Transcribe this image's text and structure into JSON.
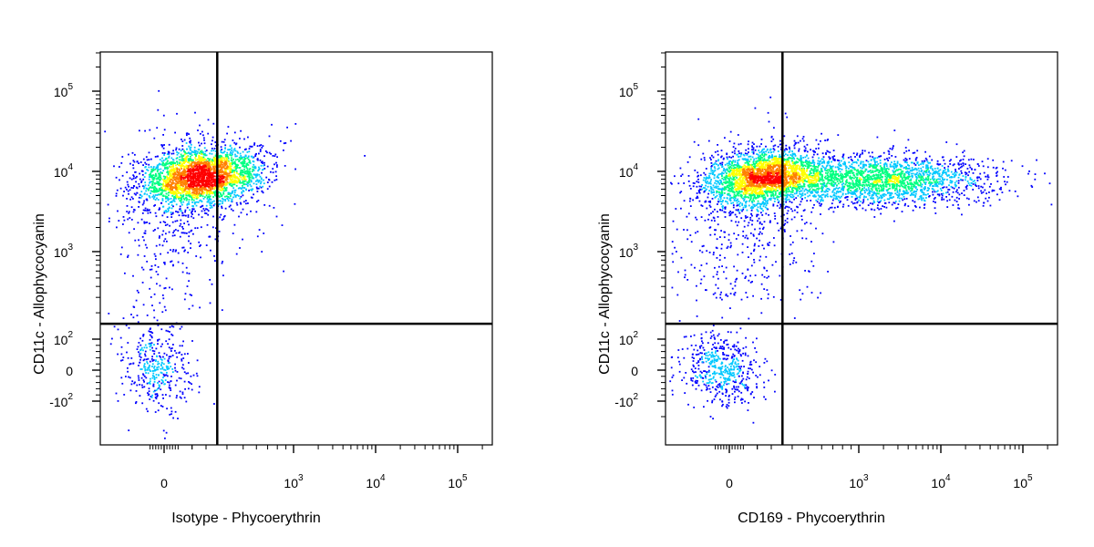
{
  "chart_data": [
    {
      "type": "scatter",
      "subtype": "flow-cytometry-density-dot-plot",
      "title": "",
      "xlabel": "Isotype - Phycoerythrin",
      "ylabel": "CD11c - Allophycocyanin",
      "x_scale": "biexponential",
      "y_scale": "biexponential",
      "xlim": [
        -150,
        200000
      ],
      "ylim": [
        -200,
        250000
      ],
      "x_ticks": [
        {
          "value": 0,
          "base": "0",
          "exp": ""
        },
        {
          "value": 1000,
          "base": "10",
          "exp": "3"
        },
        {
          "value": 10000,
          "base": "10",
          "exp": "4"
        },
        {
          "value": 100000,
          "base": "10",
          "exp": "5"
        }
      ],
      "y_ticks": [
        {
          "value": -100,
          "base": "-10",
          "exp": "2"
        },
        {
          "value": 0,
          "base": "0",
          "exp": ""
        },
        {
          "value": 100,
          "base": "10",
          "exp": "2"
        },
        {
          "value": 1000,
          "base": "10",
          "exp": "3"
        },
        {
          "value": 10000,
          "base": "10",
          "exp": "4"
        },
        {
          "value": 100000,
          "base": "10",
          "exp": "5"
        }
      ],
      "quadrant_gate": {
        "x": 350,
        "y": 150
      },
      "density_colors": [
        "#0000ff",
        "#00c8ff",
        "#00ff80",
        "#ffff00",
        "#ff8000",
        "#ff0000"
      ],
      "populations": [
        {
          "x_center": 60,
          "x_spread": 70,
          "y_center": 8500,
          "y_spread": 0.17,
          "shape": "cluster-high"
        },
        {
          "x_center": 20,
          "x_spread": 25,
          "y_center": 10,
          "y_spread": 35,
          "shape": "cluster-low"
        }
      ],
      "grid": false,
      "legend": "none"
    },
    {
      "type": "scatter",
      "subtype": "flow-cytometry-density-dot-plot",
      "title": "",
      "xlabel": "CD169 - Phycoerythrin",
      "ylabel": "CD11c - Allophycocyanin",
      "x_scale": "biexponential",
      "y_scale": "biexponential",
      "xlim": [
        -150,
        200000
      ],
      "ylim": [
        -200,
        250000
      ],
      "x_ticks": [
        {
          "value": 0,
          "base": "0",
          "exp": ""
        },
        {
          "value": 1000,
          "base": "10",
          "exp": "3"
        },
        {
          "value": 10000,
          "base": "10",
          "exp": "4"
        },
        {
          "value": 100000,
          "base": "10",
          "exp": "5"
        }
      ],
      "y_ticks": [
        {
          "value": -100,
          "base": "-10",
          "exp": "2"
        },
        {
          "value": 0,
          "base": "0",
          "exp": ""
        },
        {
          "value": 100,
          "base": "10",
          "exp": "2"
        },
        {
          "value": 1000,
          "base": "10",
          "exp": "3"
        },
        {
          "value": 10000,
          "base": "10",
          "exp": "4"
        },
        {
          "value": 100000,
          "base": "10",
          "exp": "5"
        }
      ],
      "quadrant_gate": {
        "x": 350,
        "y": 150
      },
      "density_colors": [
        "#0000ff",
        "#00c8ff",
        "#00ff80",
        "#ffff00",
        "#ff8000",
        "#ff0000"
      ],
      "populations": [
        {
          "x_center": 60,
          "x_spread": 70,
          "y_center": 8500,
          "y_spread": 0.17,
          "shape": "cluster-high-negative"
        },
        {
          "x_center": 1800,
          "x_spread": 0.45,
          "y_center": 8000,
          "y_spread": 0.16,
          "shape": "cluster-high-positive"
        },
        {
          "x_center": 20,
          "x_spread": 25,
          "y_center": 5,
          "y_spread": 35,
          "shape": "cluster-low"
        }
      ],
      "grid": false,
      "legend": "none"
    }
  ]
}
